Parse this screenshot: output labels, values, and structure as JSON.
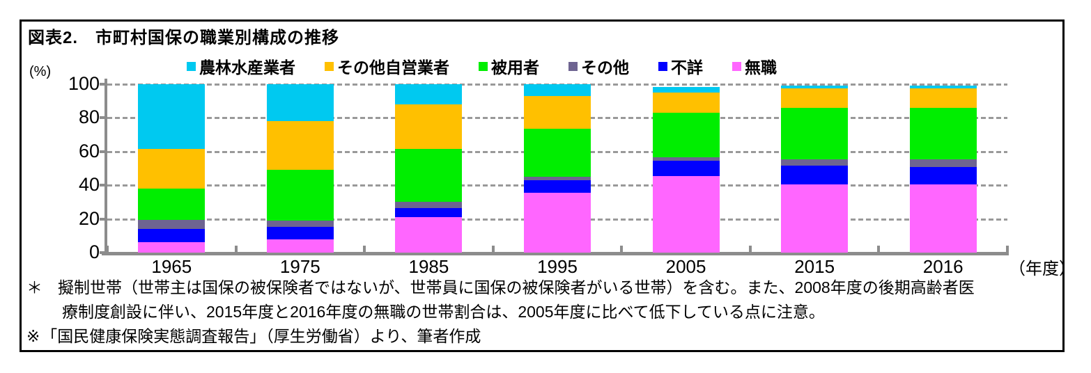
{
  "figure": {
    "title": "図表2.　市町村国保の職業別構成の推移"
  },
  "chart_data": {
    "type": "bar",
    "stacked": true,
    "title": "図表2.　市町村国保の職業別構成の推移",
    "ylabel": "(%)",
    "xlabel": "（年度）",
    "ylim": [
      0,
      100
    ],
    "yticks": [
      0,
      20,
      40,
      60,
      80,
      100
    ],
    "grid": "horizontal-dashed",
    "legend_position": "top",
    "categories": [
      "1965",
      "1975",
      "1985",
      "1995",
      "2005",
      "2015",
      "2016"
    ],
    "series": [
      {
        "name": "農林水産業者",
        "color": "#00C9F0",
        "values": [
          38.5,
          22,
          12,
          7,
          3.5,
          1.5,
          1.5
        ]
      },
      {
        "name": "その他自営業者",
        "color": "#FFC000",
        "values": [
          23.5,
          29,
          26.5,
          19.5,
          12,
          11.5,
          11.5
        ]
      },
      {
        "name": "被用者",
        "color": "#00EE00",
        "values": [
          18.5,
          30,
          31.5,
          28.5,
          26.5,
          30.5,
          30.5
        ]
      },
      {
        "name": "その他",
        "color": "#6E6491",
        "values": [
          5.5,
          3.5,
          3.5,
          2,
          2,
          4,
          4.5
        ]
      },
      {
        "name": "不詳",
        "color": "#0000FF",
        "values": [
          8,
          7.5,
          5.5,
          7.5,
          9,
          11,
          10.5
        ]
      },
      {
        "name": "無職",
        "color": "#FF66FF",
        "values": [
          6,
          8,
          21,
          35.5,
          45.5,
          40.5,
          40.5
        ]
      }
    ]
  },
  "notes": {
    "lines": [
      {
        "marker": "＊",
        "text": "擬制世帯（世帯主は国保の被保険者ではないが、世帯員に国保の被保険者がいる世帯）を含む。また、2008年度の後期高齢者医"
      },
      {
        "marker": "",
        "text": "療制度創設に伴い、2015年度と2016年度の無職の世帯割合は、2005年度に比べて低下している点に注意。"
      },
      {
        "marker": "※",
        "text": "「国民健康保険実態調査報告」（厚生労働省）より、筆者作成"
      }
    ]
  },
  "colors": {
    "axis": "#8C8C8C",
    "gridline": "#999999",
    "frame_border": "#000000",
    "background": "#FFFFFF"
  }
}
